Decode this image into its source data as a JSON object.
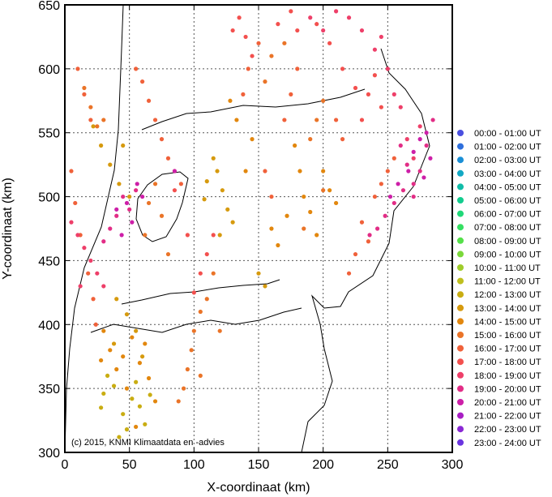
{
  "chart_data": {
    "type": "scatter",
    "xlabel": "X-coordinaat (km)",
    "ylabel": "Y-coordinaat (km)",
    "xlim": [
      0,
      300
    ],
    "ylim": [
      300,
      650
    ],
    "xticks": [
      "0",
      "50",
      "100",
      "150",
      "200",
      "250",
      "300"
    ],
    "yticks": [
      "300",
      "350",
      "400",
      "450",
      "500",
      "550",
      "600",
      "650"
    ],
    "grid": true,
    "legend_position": "right",
    "credit": "(c) 2015, KNMI Klimaatdata en -advies",
    "series": [
      {
        "name": "00:00 - 01:00 UT",
        "color": "#4a4fe0",
        "points": []
      },
      {
        "name": "01:00 - 02:00 UT",
        "color": "#2f6fdc",
        "points": []
      },
      {
        "name": "02:00 - 03:00 UT",
        "color": "#1a8fd6",
        "points": []
      },
      {
        "name": "03:00 - 04:00 UT",
        "color": "#12a8c4",
        "points": []
      },
      {
        "name": "04:00 - 05:00 UT",
        "color": "#10bca8",
        "points": []
      },
      {
        "name": "05:00 - 06:00 UT",
        "color": "#12cc8e",
        "points": []
      },
      {
        "name": "06:00 - 07:00 UT",
        "color": "#1fd878",
        "points": []
      },
      {
        "name": "07:00 - 08:00 UT",
        "color": "#35df62",
        "points": []
      },
      {
        "name": "08:00 - 09:00 UT",
        "color": "#55e04a",
        "points": []
      },
      {
        "name": "09:00 - 10:00 UT",
        "color": "#7ad83a",
        "points": []
      },
      {
        "name": "10:00 - 11:00 UT",
        "color": "#9fcc2a",
        "points": []
      },
      {
        "name": "11:00 - 12:00 UT",
        "color": "#bfbf1e",
        "points": []
      },
      {
        "name": "12:00 - 13:00 UT",
        "color": "#c9ad12",
        "points": [
          [
            30,
            346
          ],
          [
            38,
            352
          ],
          [
            45,
            330
          ],
          [
            52,
            342
          ],
          [
            58,
            336
          ],
          [
            62,
            322
          ],
          [
            28,
            335
          ],
          [
            42,
            312
          ],
          [
            55,
            355
          ],
          [
            66,
            345
          ],
          [
            33,
            360
          ],
          [
            48,
            318
          ]
        ]
      },
      {
        "name": "13:00 - 14:00 UT",
        "color": "#d69a0e",
        "points": [
          [
            118,
            520
          ],
          [
            122,
            505
          ],
          [
            126,
            490
          ],
          [
            115,
            530
          ],
          [
            110,
            512
          ],
          [
            130,
            480
          ],
          [
            120,
            470
          ],
          [
            108,
            498
          ],
          [
            35,
            525
          ],
          [
            42,
            510
          ],
          [
            28,
            540
          ],
          [
            22,
            555
          ],
          [
            45,
            540
          ],
          [
            50,
            500
          ],
          [
            40,
            420
          ],
          [
            48,
            408
          ],
          [
            55,
            395
          ],
          [
            38,
            385
          ],
          [
            60,
            375
          ],
          [
            150,
            440
          ],
          [
            155,
            430
          ]
        ]
      },
      {
        "name": "14:00 - 15:00 UT",
        "color": "#e2870e",
        "points": [
          [
            30,
            395
          ],
          [
            35,
            380
          ],
          [
            45,
            375
          ],
          [
            52,
            390
          ],
          [
            40,
            365
          ],
          [
            58,
            370
          ],
          [
            65,
            358
          ],
          [
            48,
            350
          ],
          [
            55,
            320
          ],
          [
            70,
            340
          ],
          [
            62,
            385
          ],
          [
            28,
            372
          ],
          [
            160,
            475
          ],
          [
            165,
            462
          ],
          [
            172,
            485
          ],
          [
            185,
            500
          ],
          [
            190,
            488
          ],
          [
            195,
            470
          ],
          [
            182,
            520
          ],
          [
            178,
            540
          ],
          [
            200,
            520
          ],
          [
            205,
            505
          ],
          [
            210,
            495
          ],
          [
            140,
            520
          ],
          [
            145,
            545
          ],
          [
            133,
            560
          ],
          [
            128,
            575
          ]
        ]
      },
      {
        "name": "15:00 - 16:00 UT",
        "color": "#ea7428",
        "points": [
          [
            100,
            395
          ],
          [
            105,
            410
          ],
          [
            98,
            380
          ],
          [
            110,
            420
          ],
          [
            115,
            440
          ],
          [
            95,
            365
          ],
          [
            92,
            350
          ],
          [
            120,
            395
          ],
          [
            88,
            340
          ],
          [
            105,
            360
          ],
          [
            75,
            485
          ],
          [
            65,
            495
          ],
          [
            70,
            510
          ],
          [
            62,
            470
          ],
          [
            80,
            455
          ],
          [
            20,
            570
          ],
          [
            25,
            555
          ],
          [
            15,
            585
          ],
          [
            30,
            560
          ],
          [
            190,
            545
          ],
          [
            195,
            560
          ],
          [
            200,
            575
          ],
          [
            155,
            590
          ],
          [
            160,
            610
          ],
          [
            170,
            620
          ],
          [
            200,
            505
          ],
          [
            185,
            475
          ]
        ]
      },
      {
        "name": "16:00 - 17:00 UT",
        "color": "#f0613a",
        "points": [
          [
            60,
            590
          ],
          [
            65,
            575
          ],
          [
            70,
            560
          ],
          [
            75,
            545
          ],
          [
            80,
            530
          ],
          [
            85,
            520
          ],
          [
            55,
            600
          ],
          [
            90,
            510
          ],
          [
            10,
            600
          ],
          [
            15,
            580
          ],
          [
            20,
            560
          ],
          [
            5,
            520
          ],
          [
            8,
            495
          ],
          [
            12,
            470
          ],
          [
            18,
            440
          ],
          [
            22,
            420
          ],
          [
            24,
            400
          ],
          [
            230,
            480
          ],
          [
            235,
            465
          ],
          [
            240,
            500
          ],
          [
            245,
            510
          ],
          [
            225,
            455
          ],
          [
            220,
            440
          ],
          [
            250,
            520
          ],
          [
            255,
            530
          ],
          [
            210,
            560
          ],
          [
            215,
            545
          ],
          [
            170,
            560
          ],
          [
            175,
            580
          ],
          [
            180,
            600
          ],
          [
            142,
            600
          ],
          [
            150,
            620
          ],
          [
            138,
            580
          ],
          [
            155,
            520
          ],
          [
            160,
            500
          ]
        ]
      },
      {
        "name": "17:00 - 18:00 UT",
        "color": "#f3504e",
        "points": [
          [
            130,
            630
          ],
          [
            135,
            640
          ],
          [
            140,
            625
          ],
          [
            145,
            610
          ],
          [
            165,
            635
          ],
          [
            175,
            645
          ],
          [
            180,
            630
          ],
          [
            195,
            635
          ],
          [
            205,
            620
          ],
          [
            215,
            600
          ],
          [
            225,
            585
          ],
          [
            235,
            580
          ],
          [
            240,
            595
          ],
          [
            245,
            570
          ],
          [
            230,
            560
          ],
          [
            115,
            470
          ],
          [
            110,
            455
          ],
          [
            105,
            440
          ],
          [
            100,
            425
          ],
          [
            95,
            470
          ],
          [
            85,
            505
          ]
        ]
      },
      {
        "name": "18:00 - 19:00 UT",
        "color": "#ee3f69",
        "points": [
          [
            190,
            640
          ],
          [
            200,
            630
          ],
          [
            210,
            645
          ],
          [
            220,
            640
          ],
          [
            230,
            630
          ],
          [
            240,
            615
          ],
          [
            250,
            600
          ],
          [
            245,
            625
          ],
          [
            255,
            580
          ],
          [
            260,
            570
          ],
          [
            265,
            545
          ],
          [
            270,
            530
          ],
          [
            275,
            555
          ],
          [
            10,
            470
          ],
          [
            15,
            460
          ],
          [
            5,
            480
          ],
          [
            20,
            450
          ],
          [
            25,
            440
          ],
          [
            12,
            430
          ],
          [
            30,
            430
          ]
        ]
      },
      {
        "name": "19:00 - 20:00 UT",
        "color": "#e22d86",
        "points": [
          [
            260,
            540
          ],
          [
            265,
            525
          ],
          [
            270,
            510
          ],
          [
            275,
            520
          ],
          [
            280,
            540
          ],
          [
            285,
            560
          ],
          [
            270,
            500
          ],
          [
            262,
            505
          ],
          [
            255,
            495
          ],
          [
            248,
            485
          ],
          [
            242,
            475
          ],
          [
            236,
            470
          ],
          [
            45,
            500
          ],
          [
            50,
            490
          ],
          [
            55,
            505
          ],
          [
            40,
            485
          ],
          [
            35,
            475
          ],
          [
            30,
            465
          ]
        ]
      },
      {
        "name": "20:00 - 21:00 UT",
        "color": "#cd1fa8",
        "points": [
          [
            48,
            495
          ],
          [
            52,
            480
          ],
          [
            44,
            470
          ],
          [
            56,
            510
          ],
          [
            60,
            500
          ],
          [
            40,
            490
          ],
          [
            270,
            535
          ],
          [
            275,
            545
          ],
          [
            280,
            550
          ],
          [
            283,
            530
          ],
          [
            278,
            515
          ],
          [
            266,
            520
          ],
          [
            258,
            510
          ],
          [
            252,
            500
          ],
          [
            85,
            520
          ]
        ]
      },
      {
        "name": "21:00 - 22:00 UT",
        "color": "#a81ec4",
        "points": []
      },
      {
        "name": "22:00 - 23:00 UT",
        "color": "#8a28d4",
        "points": []
      },
      {
        "name": "23:00 - 24:00 UT",
        "color": "#6a34e0",
        "points": []
      }
    ]
  }
}
